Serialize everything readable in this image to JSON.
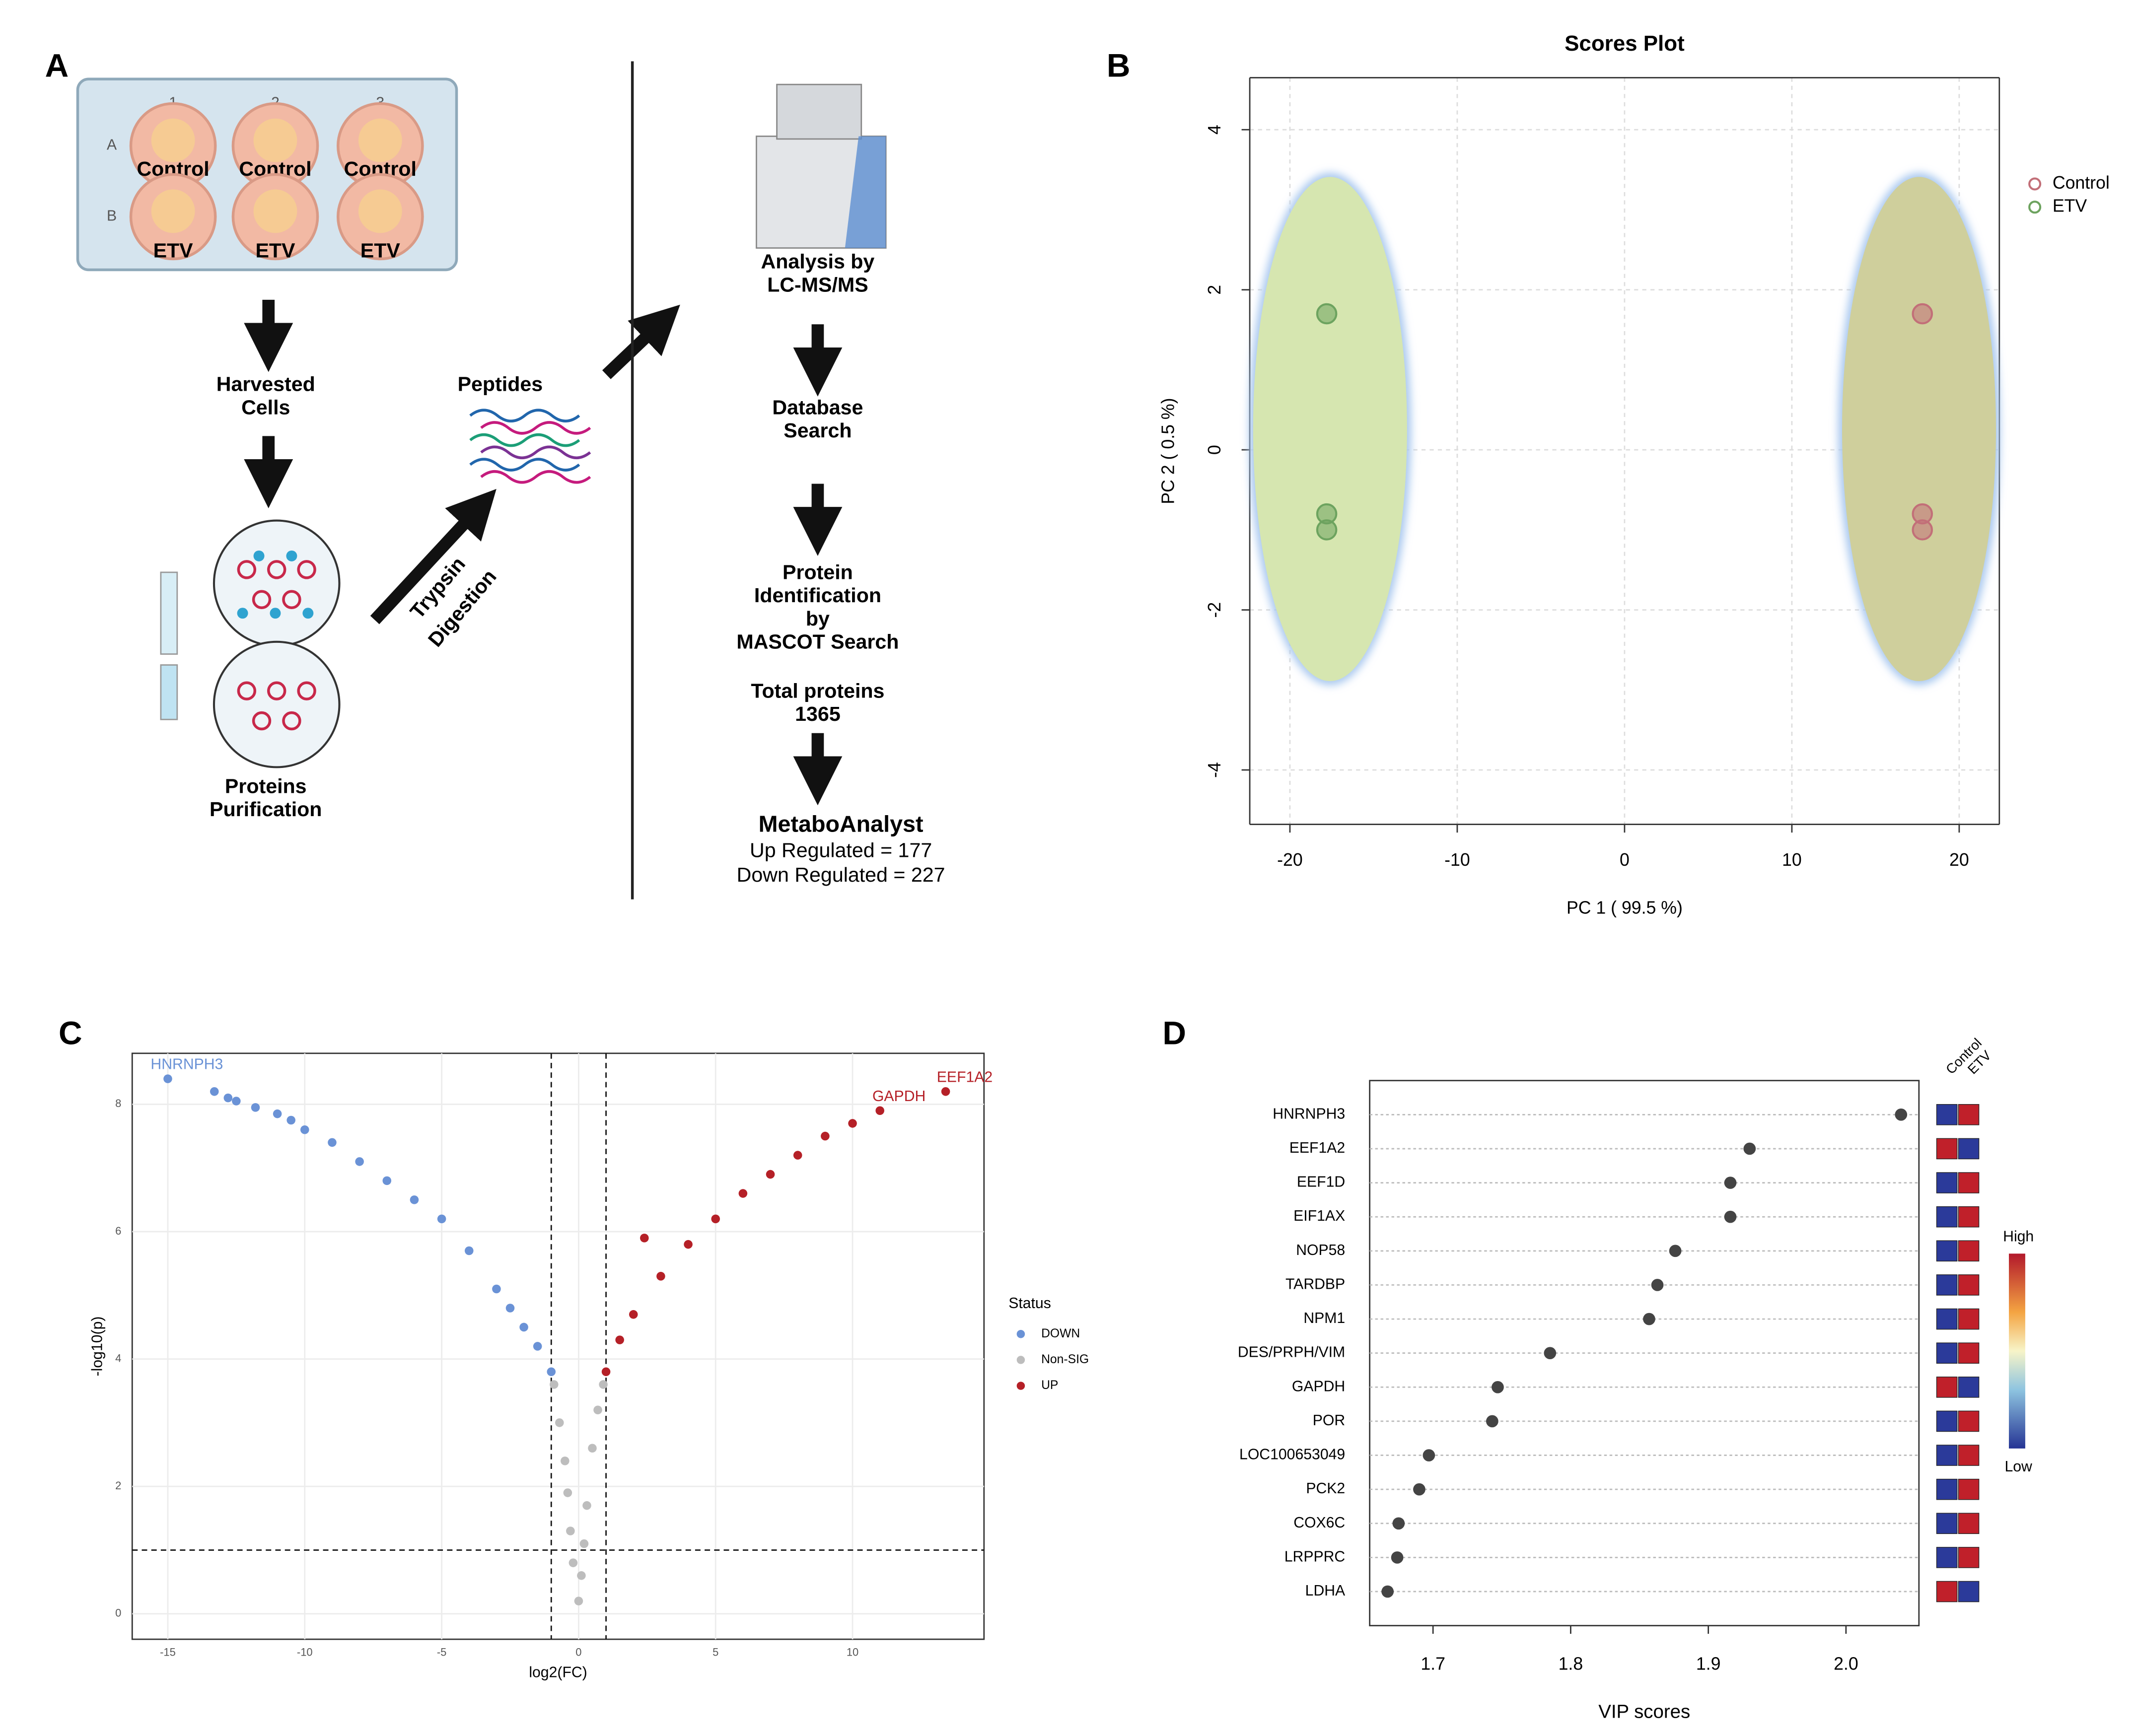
{
  "figure": {
    "panel_labels": [
      "A",
      "B",
      "C",
      "D"
    ]
  },
  "panel_a": {
    "plate_columns": [
      "1",
      "2",
      "3"
    ],
    "plate_rows": [
      "A",
      "B"
    ],
    "wells": [
      [
        "Control",
        "Control",
        "Control"
      ],
      [
        "ETV",
        "ETV",
        "ETV"
      ]
    ],
    "harvested": [
      "Harvested",
      "Cells"
    ],
    "purification": [
      "Proteins",
      "Purification"
    ],
    "digestion": [
      "Trypsin",
      "Digestion"
    ],
    "peptides": "Peptides",
    "analysis": [
      "Analysis by",
      "LC-MS/MS"
    ],
    "database": [
      "Database",
      "Search"
    ],
    "identification": [
      "Protein",
      "Identification",
      "by",
      "MASCOT Search"
    ],
    "total": [
      "Total proteins",
      "1365"
    ],
    "metabo": "MetaboAnalyst",
    "up": "Up Regulated = 177",
    "down": "Down Regulated = 227"
  },
  "chart_data": [
    {
      "type": "scatter",
      "title": "Scores Plot",
      "xlabel": "PC 1 ( 99.5 %)",
      "ylabel": "PC 2 ( 0.5 %)",
      "xlim": [
        -22.4,
        22.4
      ],
      "ylim": [
        -4.68,
        4.65
      ],
      "xticks": [
        -20,
        -10,
        0,
        10,
        20
      ],
      "yticks": [
        -4,
        -2,
        0,
        2,
        4
      ],
      "grid": true,
      "legend": "right",
      "series": [
        {
          "name": "Control",
          "color": "#c26f78",
          "x": [
            17.8,
            17.8,
            17.8
          ],
          "y": [
            1.7,
            -0.8,
            -1.0
          ],
          "ellipse": {
            "cx": 17.6,
            "cy": 0.26,
            "rx": 4.6,
            "ry": 3.15,
            "color": "#cfcf9c"
          }
        },
        {
          "name": "ETV",
          "color": "#6da35f",
          "x": [
            -17.8,
            -17.8,
            -17.8
          ],
          "y": [
            1.7,
            -0.8,
            -1.0
          ],
          "ellipse": {
            "cx": -17.6,
            "cy": 0.26,
            "rx": 4.6,
            "ry": 3.15,
            "color": "#d6e6b0"
          }
        }
      ]
    },
    {
      "type": "volcano",
      "xlabel": "log2(FC)",
      "ylabel": "-log10(p)",
      "xlim": [
        -16.3,
        14.8
      ],
      "ylim": [
        -0.4,
        8.8
      ],
      "xticks": [
        -15,
        -10,
        -5,
        0,
        5,
        10
      ],
      "yticks": [
        0,
        2,
        4,
        6,
        8
      ],
      "grid": true,
      "legend": "right",
      "legend_title": "Status",
      "thresholds": {
        "x": [
          -1,
          1
        ],
        "y": [
          1
        ]
      },
      "series": [
        {
          "name": "DOWN",
          "color": "#6a92d6",
          "x": [
            -15,
            -13.3,
            -12.8,
            -12.5,
            -11.8,
            -11,
            -10.5,
            -10,
            -9,
            -8,
            -7,
            -6,
            -5,
            -4,
            -3,
            -2.5,
            -2,
            -1.5,
            -1
          ],
          "y": [
            8.4,
            8.2,
            8.1,
            8.05,
            7.95,
            7.85,
            7.75,
            7.6,
            7.4,
            7.1,
            6.8,
            6.5,
            6.2,
            5.7,
            5.1,
            4.8,
            4.5,
            4.2,
            3.8
          ]
        },
        {
          "name": "Non-SIG",
          "color": "#bdbdbd",
          "x": [
            -0.9,
            -0.7,
            -0.5,
            -0.4,
            -0.3,
            -0.2,
            0,
            0.1,
            0.2,
            0.3,
            0.5,
            0.7,
            0.9
          ],
          "y": [
            3.6,
            3,
            2.4,
            1.9,
            1.3,
            0.8,
            0.2,
            0.6,
            1.1,
            1.7,
            2.6,
            3.2,
            3.6
          ]
        },
        {
          "name": "UP",
          "color": "#b52027",
          "x": [
            1,
            1.5,
            2,
            2.4,
            3,
            4,
            5,
            6,
            7,
            8,
            9,
            10,
            11,
            13.4
          ],
          "y": [
            3.8,
            4.3,
            4.7,
            5.9,
            5.3,
            5.8,
            6.2,
            6.6,
            6.9,
            7.2,
            7.5,
            7.7,
            7.9,
            8.2
          ]
        }
      ],
      "annotations": [
        {
          "text": "HNRNPH3",
          "x": -15,
          "y": 8.4,
          "color": "#6a92d6"
        },
        {
          "text": "GAPDH",
          "x": 11,
          "y": 7.9,
          "color": "#b52027"
        },
        {
          "text": "EEF1A2",
          "x": 13.4,
          "y": 8.2,
          "color": "#b52027"
        }
      ]
    },
    {
      "type": "dot",
      "xlabel": "VIP scores",
      "color": "#444444",
      "categories": [
        "HNRNPH3",
        "EEF1A2",
        "EEF1D",
        "EIF1AX",
        "NOP58",
        "TARDBP",
        "NPM1",
        "DES/PRPH/VIM",
        "GAPDH",
        "POR",
        "LOC100653049",
        "PCK2",
        "COX6C",
        "LRPPRC",
        "LDHA"
      ],
      "values": [
        2.04,
        1.93,
        1.916,
        1.916,
        1.876,
        1.863,
        1.857,
        1.785,
        1.747,
        1.743,
        1.697,
        1.69,
        1.675,
        1.674,
        1.667
      ],
      "xlim": [
        1.654,
        2.053
      ],
      "xticks": [
        1.7,
        1.8,
        1.9,
        {
          "value": 2,
          "label": "2.0"
        }
      ],
      "heatmap_columns": [
        "Control",
        "ETV"
      ],
      "heatmap": [
        [
          "#2b3a9a",
          "#c0202a"
        ],
        [
          "#c0202a",
          "#2b3a9a"
        ],
        [
          "#2b3a9a",
          "#c0202a"
        ],
        [
          "#2b3a9a",
          "#c0202a"
        ],
        [
          "#2b3a9a",
          "#c0202a"
        ],
        [
          "#2b3a9a",
          "#c0202a"
        ],
        [
          "#2b3a9a",
          "#c0202a"
        ],
        [
          "#2b3a9a",
          "#c0202a"
        ],
        [
          "#c0202a",
          "#2b3a9a"
        ],
        [
          "#2b3a9a",
          "#c0202a"
        ],
        [
          "#2b3a9a",
          "#c0202a"
        ],
        [
          "#2b3a9a",
          "#c0202a"
        ],
        [
          "#2b3a9a",
          "#c0202a"
        ],
        [
          "#2b3a9a",
          "#c0202a"
        ],
        [
          "#c0202a",
          "#2b3a9a"
        ]
      ],
      "colorbar_labels": [
        "High",
        "Low"
      ]
    }
  ]
}
